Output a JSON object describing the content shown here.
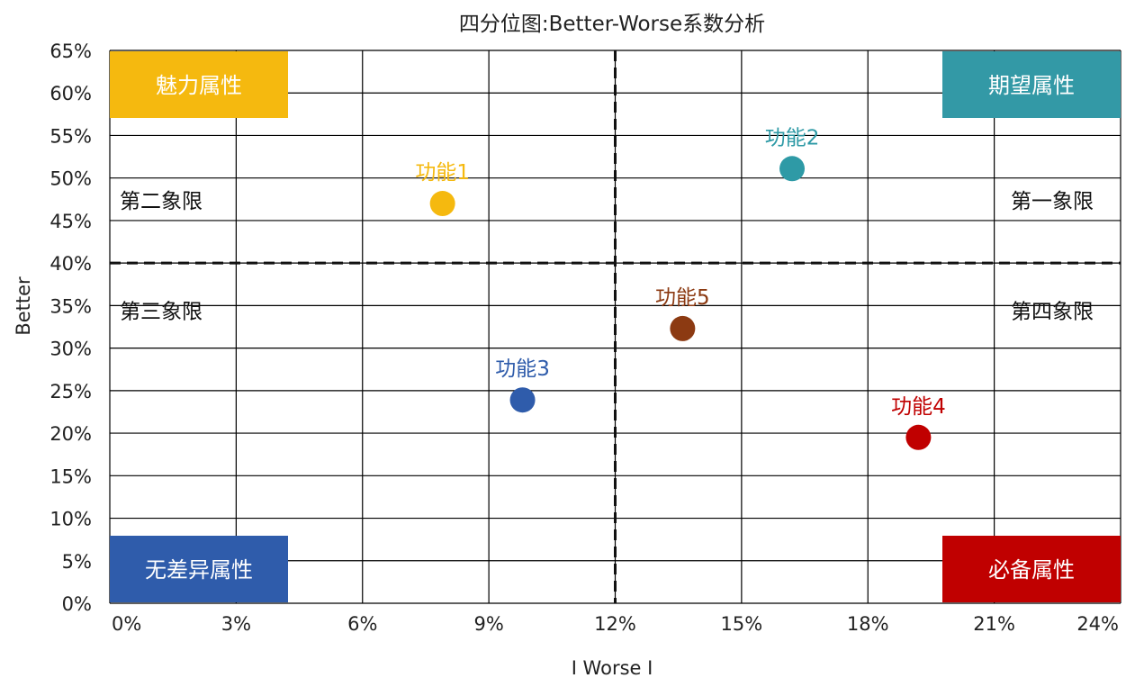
{
  "chart_data": {
    "type": "scatter",
    "title": "四分位图:Better-Worse系数分析",
    "xlabel": "I Worse I",
    "ylabel": "Better",
    "xlim": [
      0,
      0.24
    ],
    "ylim": [
      0,
      0.65
    ],
    "x_ticks": [
      "0%",
      "3%",
      "6%",
      "9%",
      "12%",
      "15%",
      "18%",
      "21%",
      "24%"
    ],
    "y_ticks": [
      "0%",
      "5%",
      "10%",
      "15%",
      "20%",
      "25%",
      "30%",
      "35%",
      "40%",
      "45%",
      "50%",
      "55%",
      "60%",
      "65%"
    ],
    "grid": true,
    "reference_lines": {
      "x": 0.12,
      "y": 0.4
    },
    "points": [
      {
        "label": "功能1",
        "x": 0.079,
        "y": 0.47,
        "color": "#F5B90F"
      },
      {
        "label": "功能2",
        "x": 0.162,
        "y": 0.511,
        "color": "#2E9AA6"
      },
      {
        "label": "功能3",
        "x": 0.098,
        "y": 0.239,
        "color": "#2F5CAB"
      },
      {
        "label": "功能4",
        "x": 0.192,
        "y": 0.195,
        "color": "#C00000"
      },
      {
        "label": "功能5",
        "x": 0.136,
        "y": 0.323,
        "color": "#8C3A12"
      }
    ],
    "quadrant_labels": {
      "q1": "第一象限",
      "q2": "第二象限",
      "q3": "第三象限",
      "q4": "第四象限"
    },
    "corner_labels": [
      {
        "text": "魅力属性",
        "position": "top-left",
        "color": "#F5B90F"
      },
      {
        "text": "期望属性",
        "position": "top-right",
        "color": "#3399A6"
      },
      {
        "text": "无差异属性",
        "position": "bottom-left",
        "color": "#2F5CAB"
      },
      {
        "text": "必备属性",
        "position": "bottom-right",
        "color": "#C00000"
      }
    ]
  }
}
